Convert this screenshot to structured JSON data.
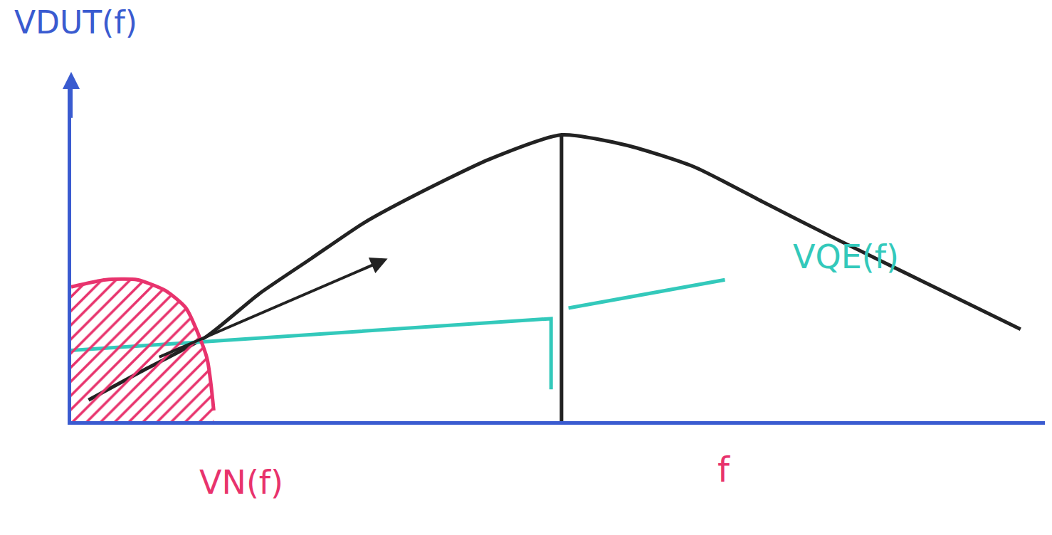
{
  "chart_data": {
    "type": "line",
    "y_label": "VDUT(f)",
    "x_label": "f",
    "xlim": [
      0,
      14
    ],
    "ylim": [
      0,
      9.5
    ],
    "xticks": [],
    "yticks": [],
    "tick_labels": false,
    "grid": false,
    "series": [
      {
        "color": "#222222",
        "x": [
          0.25,
          1.0,
          1.95,
          2.7,
          3.45,
          4.2,
          4.95,
          6.0,
          7.05,
          8.0,
          8.95,
          9.95,
          10.95,
          12.3,
          13.65
        ],
        "values": [
          0.6,
          1.4,
          2.4,
          3.6,
          4.6,
          5.6,
          6.4,
          7.4,
          8.1,
          7.8,
          7.2,
          6.2,
          5.2,
          3.9,
          2.6
        ]
      },
      {
        "color": "#222222",
        "x": [
          7.05,
          7.05
        ],
        "values": [
          0,
          8.1
        ]
      },
      {
        "name": "VQE(f)",
        "color": "#33c9bb",
        "x": [
          0,
          6.9,
          6.9,
          null,
          7.15,
          9.4
        ],
        "values": [
          2.0,
          2.9,
          0.9,
          null,
          3.2,
          4.0
        ]
      },
      {
        "name": "VN(f)",
        "color": "#e8336d",
        "x": [
          0,
          0.5,
          0.95,
          1.35,
          1.65,
          1.95,
          2.05
        ],
        "values": [
          3.8,
          4.0,
          4.0,
          3.7,
          3.2,
          1.8,
          0.3
        ]
      }
    ]
  }
}
